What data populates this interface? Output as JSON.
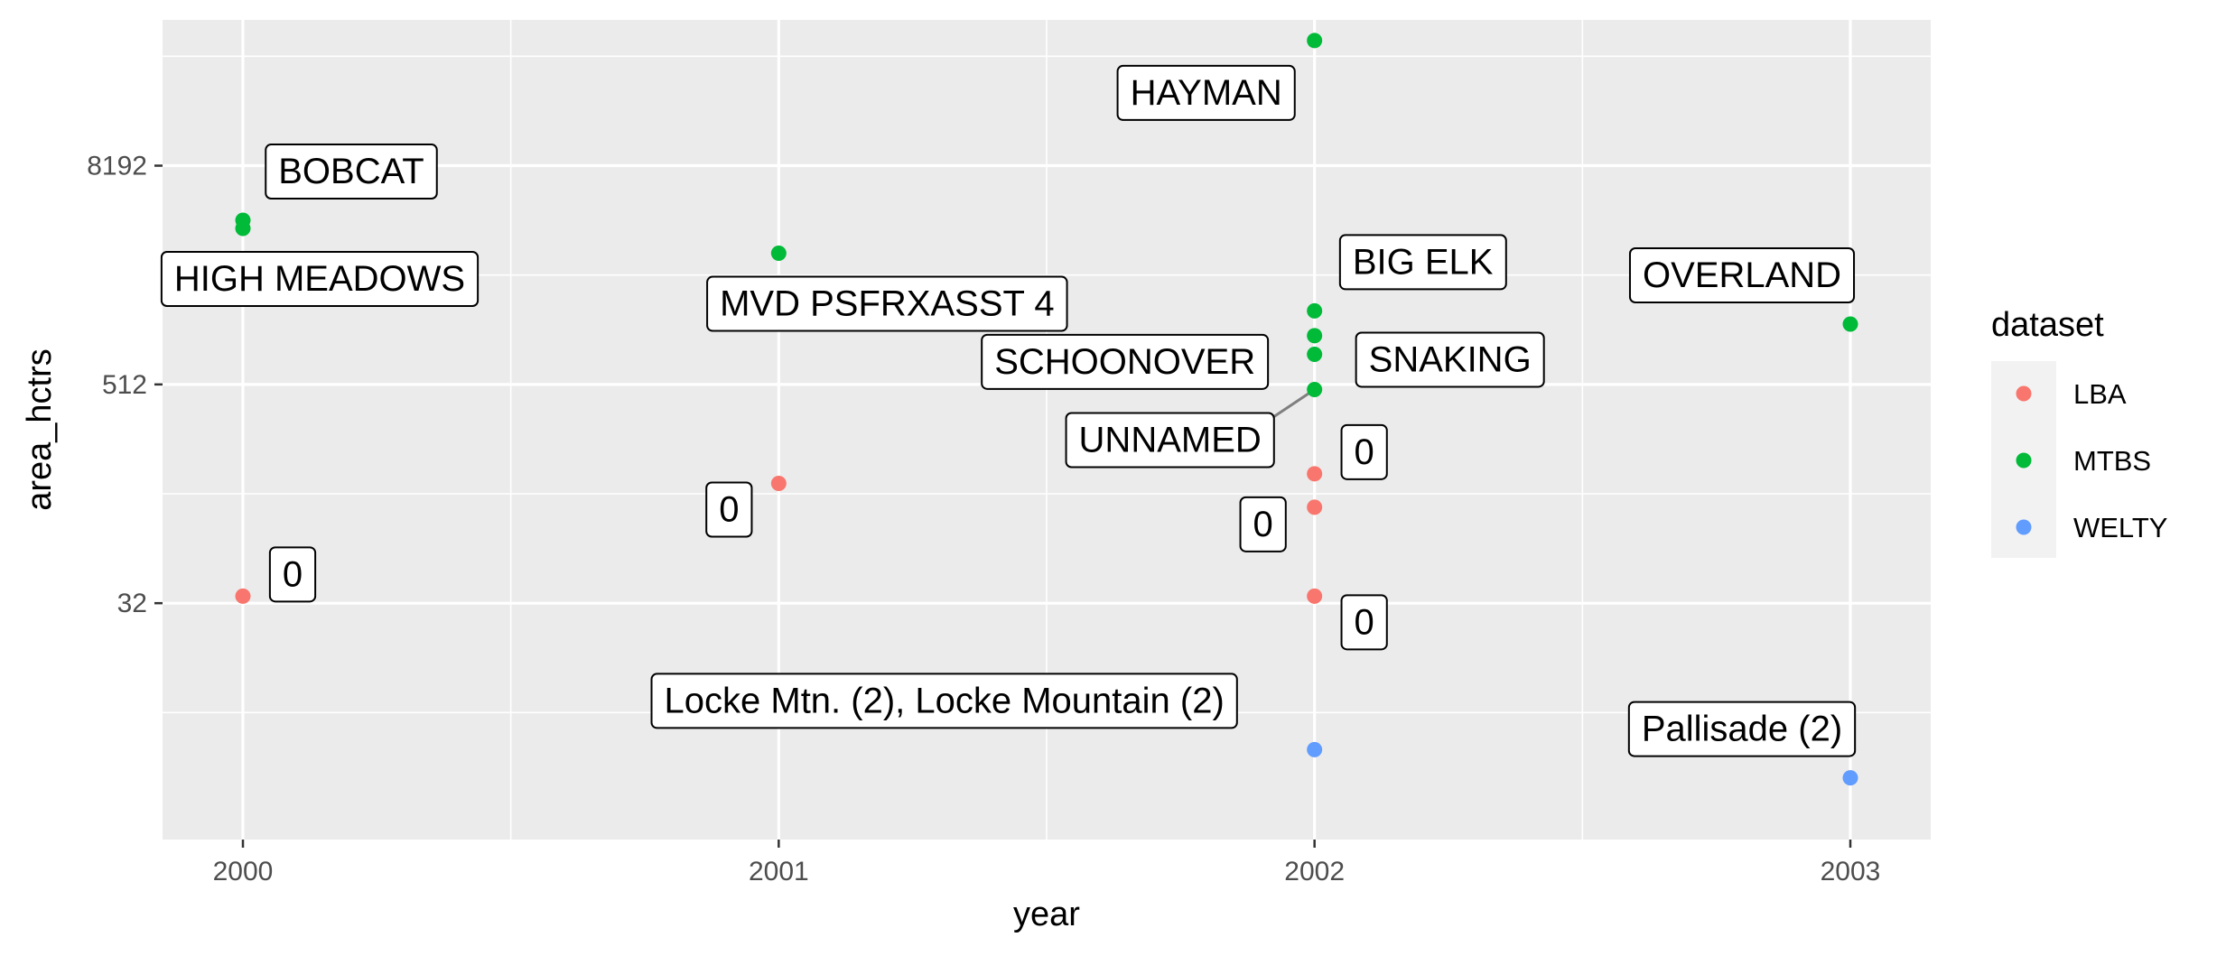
{
  "chart_data": {
    "type": "scatter",
    "xlabel": "year",
    "ylabel": "area_hctrs",
    "y_scale": "log2",
    "x_ticks": [
      2000,
      2001,
      2002,
      2003
    ],
    "y_ticks": [
      32,
      512,
      8192
    ],
    "xlim": [
      1999.85,
      2003.15
    ],
    "ylim": [
      1.6,
      52000
    ],
    "grid": true,
    "legend": {
      "title": "dataset",
      "position": "right",
      "entries": [
        {
          "name": "LBA",
          "color": "#F8766D"
        },
        {
          "name": "MTBS",
          "color": "#00BA38"
        },
        {
          "name": "WELTY",
          "color": "#619CFF"
        }
      ]
    },
    "points": [
      {
        "x": 2000,
        "y": 35,
        "dataset": "LBA"
      },
      {
        "x": 2000,
        "y": 4100,
        "dataset": "MTBS"
      },
      {
        "x": 2000,
        "y": 3700,
        "dataset": "MTBS"
      },
      {
        "x": 2001,
        "y": 146,
        "dataset": "LBA"
      },
      {
        "x": 2001,
        "y": 2700,
        "dataset": "MTBS"
      },
      {
        "x": 2002,
        "y": 40000,
        "dataset": "MTBS"
      },
      {
        "x": 2002,
        "y": 1300,
        "dataset": "MTBS"
      },
      {
        "x": 2002,
        "y": 950,
        "dataset": "MTBS"
      },
      {
        "x": 2002,
        "y": 750,
        "dataset": "MTBS"
      },
      {
        "x": 2002,
        "y": 480,
        "dataset": "MTBS"
      },
      {
        "x": 2002,
        "y": 165,
        "dataset": "LBA"
      },
      {
        "x": 2002,
        "y": 108,
        "dataset": "LBA"
      },
      {
        "x": 2002,
        "y": 35,
        "dataset": "LBA"
      },
      {
        "x": 2002,
        "y": 5,
        "dataset": "WELTY"
      },
      {
        "x": 2003,
        "y": 1100,
        "dataset": "MTBS"
      },
      {
        "x": 2003,
        "y": 3.5,
        "dataset": "WELTY"
      }
    ],
    "labels": [
      {
        "text": "0",
        "anchor": 0,
        "dx": 55,
        "dy": -25
      },
      {
        "text": "BOBCAT",
        "anchor": 1,
        "dx": 120,
        "dy": -55
      },
      {
        "text": "HIGH MEADOWS",
        "anchor": 2,
        "dx": 85,
        "dy": 55
      },
      {
        "text": "0",
        "anchor": 3,
        "dx": -55,
        "dy": 28
      },
      {
        "text": "MVD PSFRXASST 4",
        "anchor": 4,
        "dx": 120,
        "dy": 55
      },
      {
        "text": "HAYMAN",
        "anchor": 5,
        "dx": -120,
        "dy": 57
      },
      {
        "text": "BIG ELK",
        "anchor": 6,
        "dx": 120,
        "dy": -55
      },
      {
        "text": "SCHOONOVER",
        "anchor": 7,
        "dx": -210,
        "dy": 28
      },
      {
        "text": "SNAKING",
        "anchor": 8,
        "dx": 150,
        "dy": 5
      },
      {
        "text": "UNNAMED",
        "anchor": 9,
        "dx": -160,
        "dy": 55,
        "leader": true
      },
      {
        "text": "0",
        "anchor": 10,
        "dx": 55,
        "dy": -25
      },
      {
        "text": "0",
        "anchor": 11,
        "dx": -57,
        "dy": 18
      },
      {
        "text": "0",
        "anchor": 12,
        "dx": 55,
        "dy": 28
      },
      {
        "text": "Locke Mtn. (2), Locke Mountain (2)",
        "anchor": 13,
        "dx": -410,
        "dy": -55
      },
      {
        "text": "OVERLAND",
        "anchor": 14,
        "dx": -120,
        "dy": -55
      },
      {
        "text": "Pallisade (2)",
        "anchor": 15,
        "dx": -120,
        "dy": -55
      }
    ]
  }
}
